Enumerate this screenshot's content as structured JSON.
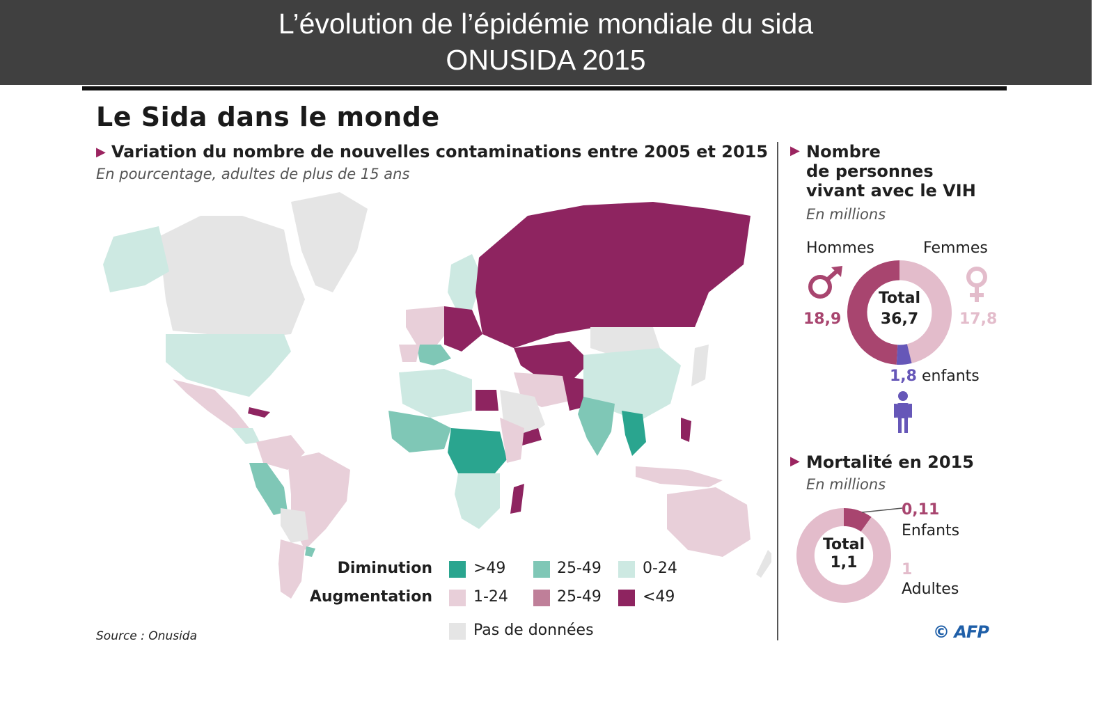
{
  "banner": {
    "line1": "L’évolution de l’épidémie mondiale du sida",
    "line2": "ONUSIDA 2015"
  },
  "infographic": {
    "title": "Le Sida dans le monde",
    "map_section": {
      "subtitle": "Variation du nombre de nouvelles contaminations entre 2005 et 2015",
      "note": "En pourcentage, adultes de plus de 15 ans",
      "legend": {
        "decrease_label": "Diminution",
        "increase_label": "Augmentation",
        "no_data_label": "Pas de données",
        "decrease_classes": [
          {
            "label": ">49",
            "color": "#2aa58f"
          },
          {
            "label": "25-49",
            "color": "#7fc7b6"
          },
          {
            "label": "0-24",
            "color": "#cde9e2"
          }
        ],
        "increase_classes": [
          {
            "label": "1-24",
            "color": "#e8cfd9"
          },
          {
            "label": "25-49",
            "color": "#bf7f99"
          },
          {
            "label": "<49",
            "color": "#8e2460"
          }
        ],
        "no_data_color": "#e5e5e5"
      },
      "source": "Source : Onusida"
    },
    "living_with_hiv": {
      "title_lines": [
        "Nombre",
        "de personnes",
        "vivant avec le VIH"
      ],
      "unit": "En millions",
      "men_label": "Hommes",
      "women_label": "Femmes",
      "men_icon": "male-symbol-icon",
      "women_icon": "female-symbol-icon",
      "child_icon": "child-figure-icon",
      "men_value": "18,9",
      "women_value": "17,8",
      "children_value": "1,8",
      "children_label": "enfants",
      "total_label": "Total",
      "total_value": "36,7",
      "colors": {
        "men": "#a8456f",
        "women": "#e3bccb",
        "children": "#6657b8"
      }
    },
    "mortality": {
      "title": "Mortalité en 2015",
      "unit": "En millions",
      "total_label": "Total",
      "total_value": "1,1",
      "children_value": "0,11",
      "children_label": "Enfants",
      "adults_value": "1",
      "adults_label": "Adultes",
      "colors": {
        "children": "#a8456f",
        "adults": "#e3bccb"
      }
    },
    "credit": "© AFP"
  },
  "chart_data": [
    {
      "type": "pie",
      "title": "Nombre de personnes vivant avec le VIH",
      "unit": "En millions",
      "categories": [
        "Hommes",
        "Femmes",
        "enfants"
      ],
      "values": [
        18.9,
        17.8,
        1.8
      ],
      "total": 36.7
    },
    {
      "type": "pie",
      "title": "Mortalité en 2015",
      "unit": "En millions",
      "categories": [
        "Enfants",
        "Adultes"
      ],
      "values": [
        0.11,
        1
      ],
      "total": 1.1
    }
  ]
}
